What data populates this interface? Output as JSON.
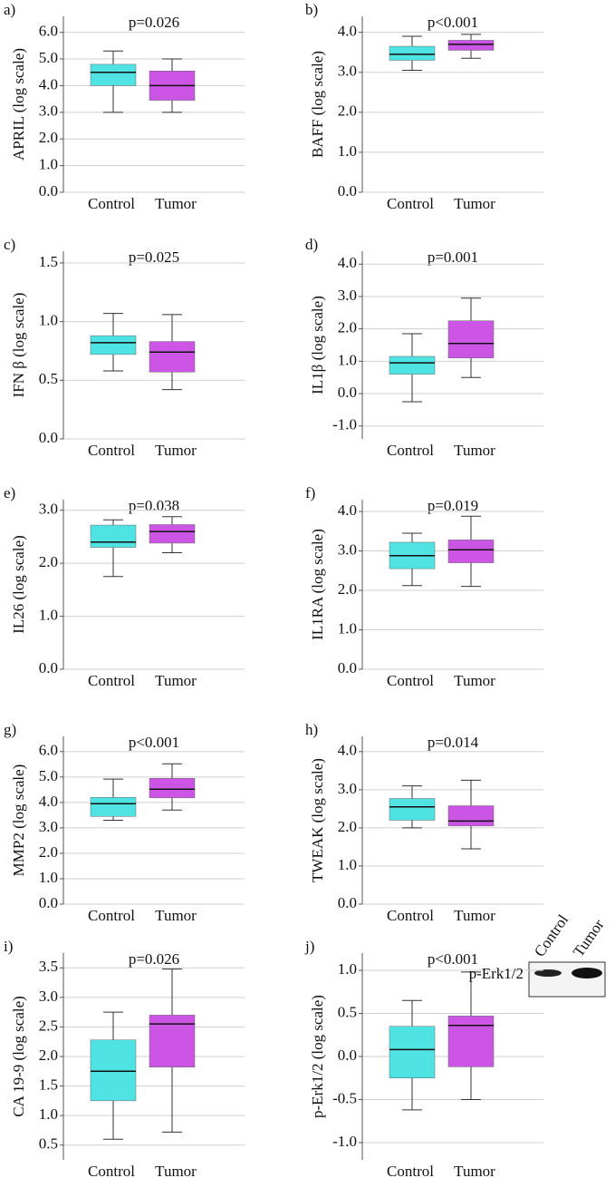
{
  "chart_data": [
    {
      "type": "box",
      "panel": "a)",
      "title": "p=0.026",
      "ylabel": "APRIL (log scale)",
      "categories": [
        "Control",
        "Tumor"
      ],
      "boxes": [
        {
          "min": 3.0,
          "q1": 4.0,
          "median": 4.5,
          "q3": 4.8,
          "max": 5.3,
          "color": "#4fe3e3"
        },
        {
          "min": 3.0,
          "q1": 3.45,
          "median": 4.0,
          "q3": 4.55,
          "max": 5.0,
          "color": "#cc55e6"
        }
      ],
      "ylim": [
        0,
        6.6
      ],
      "yticks": [
        {
          "value": 0,
          "label": "0.0"
        },
        {
          "value": 1,
          "label": "1.0"
        },
        {
          "value": 2,
          "label": "2.0"
        },
        {
          "value": 3,
          "label": "3.0"
        },
        {
          "value": 4,
          "label": "4.0"
        },
        {
          "value": 5,
          "label": "5.0"
        },
        {
          "value": 6,
          "label": "6.0"
        }
      ],
      "grid": true
    },
    {
      "type": "box",
      "panel": "b)",
      "title": "p<0.001",
      "ylabel": "BAFF (log scale)",
      "categories": [
        "Control",
        "Tumor"
      ],
      "boxes": [
        {
          "min": 3.05,
          "q1": 3.3,
          "median": 3.45,
          "q3": 3.65,
          "max": 3.9,
          "color": "#4fe3e3"
        },
        {
          "min": 3.35,
          "q1": 3.55,
          "median": 3.7,
          "q3": 3.8,
          "max": 3.95,
          "color": "#cc55e6"
        }
      ],
      "ylim": [
        0,
        4.4
      ],
      "yticks": [
        {
          "value": 0,
          "label": "0.0"
        },
        {
          "value": 1,
          "label": "1.0"
        },
        {
          "value": 2,
          "label": "2.0"
        },
        {
          "value": 3,
          "label": "3.0"
        },
        {
          "value": 4,
          "label": "4.0"
        }
      ],
      "grid": true
    },
    {
      "type": "box",
      "panel": "c)",
      "title": "p=0.025",
      "ylabel": "IFN β (log scale)",
      "categories": [
        "Control",
        "Tumor"
      ],
      "boxes": [
        {
          "min": 0.58,
          "q1": 0.72,
          "median": 0.82,
          "q3": 0.88,
          "max": 1.07,
          "color": "#4fe3e3"
        },
        {
          "min": 0.42,
          "q1": 0.57,
          "median": 0.74,
          "q3": 0.83,
          "max": 1.06,
          "color": "#cc55e6"
        }
      ],
      "ylim": [
        0,
        1.6
      ],
      "yticks": [
        {
          "value": 0,
          "label": "0.0"
        },
        0.5,
        {
          "value": 1,
          "label": "1.0"
        },
        1.5
      ],
      "grid": true
    },
    {
      "type": "box",
      "panel": "d)",
      "title": "p=0.001",
      "ylabel": "IL1β (log scale)",
      "categories": [
        "Control",
        "Tumor"
      ],
      "boxes": [
        {
          "min": -0.25,
          "q1": 0.6,
          "median": 0.95,
          "q3": 1.15,
          "max": 1.85,
          "color": "#4fe3e3"
        },
        {
          "min": 0.5,
          "q1": 1.1,
          "median": 1.55,
          "q3": 2.25,
          "max": 2.95,
          "color": "#cc55e6"
        }
      ],
      "ylim": [
        -1.4,
        4.4
      ],
      "yticks": [
        {
          "value": -1,
          "label": "-1.0"
        },
        {
          "value": 0,
          "label": "0.0"
        },
        {
          "value": 1,
          "label": "1.0"
        },
        {
          "value": 2,
          "label": "2.0"
        },
        {
          "value": 3,
          "label": "3.0"
        },
        {
          "value": 4,
          "label": "4.0"
        }
      ],
      "grid": true
    },
    {
      "type": "box",
      "panel": "e)",
      "title": "p=0.038",
      "ylabel": "IL26 (log scale)",
      "categories": [
        "Control",
        "Tumor"
      ],
      "boxes": [
        {
          "min": 1.75,
          "q1": 2.3,
          "median": 2.4,
          "q3": 2.72,
          "max": 2.82,
          "color": "#4fe3e3"
        },
        {
          "min": 2.2,
          "q1": 2.38,
          "median": 2.6,
          "q3": 2.73,
          "max": 2.88,
          "color": "#cc55e6"
        }
      ],
      "ylim": [
        0,
        3.2
      ],
      "yticks": [
        {
          "value": 0,
          "label": "0.0"
        },
        {
          "value": 1,
          "label": "1.0"
        },
        {
          "value": 2,
          "label": "2.0"
        },
        {
          "value": 3,
          "label": "3.0"
        }
      ],
      "grid": true
    },
    {
      "type": "box",
      "panel": "f)",
      "title": "p=0.019",
      "ylabel": "IL1RA (log scale)",
      "categories": [
        "Control",
        "Tumor"
      ],
      "boxes": [
        {
          "min": 2.12,
          "q1": 2.55,
          "median": 2.88,
          "q3": 3.22,
          "max": 3.45,
          "color": "#4fe3e3"
        },
        {
          "min": 2.1,
          "q1": 2.7,
          "median": 3.03,
          "q3": 3.28,
          "max": 3.88,
          "color": "#cc55e6"
        }
      ],
      "ylim": [
        0,
        4.3
      ],
      "yticks": [
        {
          "value": 0,
          "label": "0.0"
        },
        {
          "value": 1,
          "label": "1.0"
        },
        {
          "value": 2,
          "label": "2.0"
        },
        {
          "value": 3,
          "label": "3.0"
        },
        {
          "value": 4,
          "label": "4.0"
        }
      ],
      "grid": true
    },
    {
      "type": "box",
      "panel": "g)",
      "title": "p<0.001",
      "ylabel": "MMP2 (log scale)",
      "categories": [
        "Control",
        "Tumor"
      ],
      "boxes": [
        {
          "min": 3.3,
          "q1": 3.45,
          "median": 3.95,
          "q3": 4.2,
          "max": 4.92,
          "color": "#4fe3e3"
        },
        {
          "min": 3.7,
          "q1": 4.18,
          "median": 4.52,
          "q3": 4.95,
          "max": 5.52,
          "color": "#cc55e6"
        }
      ],
      "ylim": [
        0,
        6.6
      ],
      "yticks": [
        {
          "value": 0,
          "label": "0.0"
        },
        {
          "value": 1,
          "label": "1.0"
        },
        {
          "value": 2,
          "label": "2.0"
        },
        {
          "value": 3,
          "label": "3.0"
        },
        {
          "value": 4,
          "label": "4.0"
        },
        {
          "value": 5,
          "label": "5.0"
        },
        {
          "value": 6,
          "label": "6.0"
        }
      ],
      "grid": true
    },
    {
      "type": "box",
      "panel": "h)",
      "title": "p=0.014",
      "ylabel": "TWEAK (log scale)",
      "categories": [
        "Control",
        "Tumor"
      ],
      "boxes": [
        {
          "min": 2.0,
          "q1": 2.2,
          "median": 2.55,
          "q3": 2.77,
          "max": 3.1,
          "color": "#4fe3e3"
        },
        {
          "min": 1.45,
          "q1": 2.05,
          "median": 2.18,
          "q3": 2.58,
          "max": 3.25,
          "color": "#cc55e6"
        }
      ],
      "ylim": [
        0,
        4.4
      ],
      "yticks": [
        {
          "value": 0,
          "label": "0.0"
        },
        {
          "value": 1,
          "label": "1.0"
        },
        {
          "value": 2,
          "label": "2.0"
        },
        {
          "value": 3,
          "label": "3.0"
        },
        {
          "value": 4,
          "label": "4.0"
        }
      ],
      "grid": true
    },
    {
      "type": "box",
      "panel": "i)",
      "title": "p=0.026",
      "ylabel": "CA 19-9 (log scale)",
      "categories": [
        "Control",
        "Tumor"
      ],
      "boxes": [
        {
          "min": 0.6,
          "q1": 1.25,
          "median": 1.75,
          "q3": 2.28,
          "max": 2.75,
          "color": "#4fe3e3"
        },
        {
          "min": 0.72,
          "q1": 1.82,
          "median": 2.55,
          "q3": 2.7,
          "max": 3.48,
          "color": "#cc55e6"
        }
      ],
      "ylim": [
        0.25,
        3.75
      ],
      "yticks": [
        0.5,
        {
          "value": 1,
          "label": "1.0"
        },
        1.5,
        {
          "value": 2,
          "label": "2.0"
        },
        2.5,
        {
          "value": 3,
          "label": "3.0"
        },
        3.5
      ],
      "grid": true
    },
    {
      "type": "box",
      "panel": "j)",
      "title": "p<0.001",
      "ylabel": "p-Erk1/2 (log scale)",
      "categories": [
        "Control",
        "Tumor"
      ],
      "boxes": [
        {
          "min": -0.62,
          "q1": -0.25,
          "median": 0.08,
          "q3": 0.35,
          "max": 0.65,
          "color": "#4fe3e3"
        },
        {
          "min": -0.5,
          "q1": -0.12,
          "median": 0.36,
          "q3": 0.47,
          "max": 0.98,
          "color": "#cc55e6"
        }
      ],
      "ylim": [
        -1.2,
        1.2
      ],
      "yticks": [
        {
          "value": -1,
          "label": "-1.0"
        },
        -0.5,
        {
          "value": 0,
          "label": "0.0"
        },
        0.5,
        {
          "value": 1,
          "label": "1.0"
        }
      ],
      "grid": true,
      "inset": {
        "lanes": [
          "Control",
          "Tumor"
        ],
        "band_label": "p-Erk1/2"
      }
    }
  ]
}
